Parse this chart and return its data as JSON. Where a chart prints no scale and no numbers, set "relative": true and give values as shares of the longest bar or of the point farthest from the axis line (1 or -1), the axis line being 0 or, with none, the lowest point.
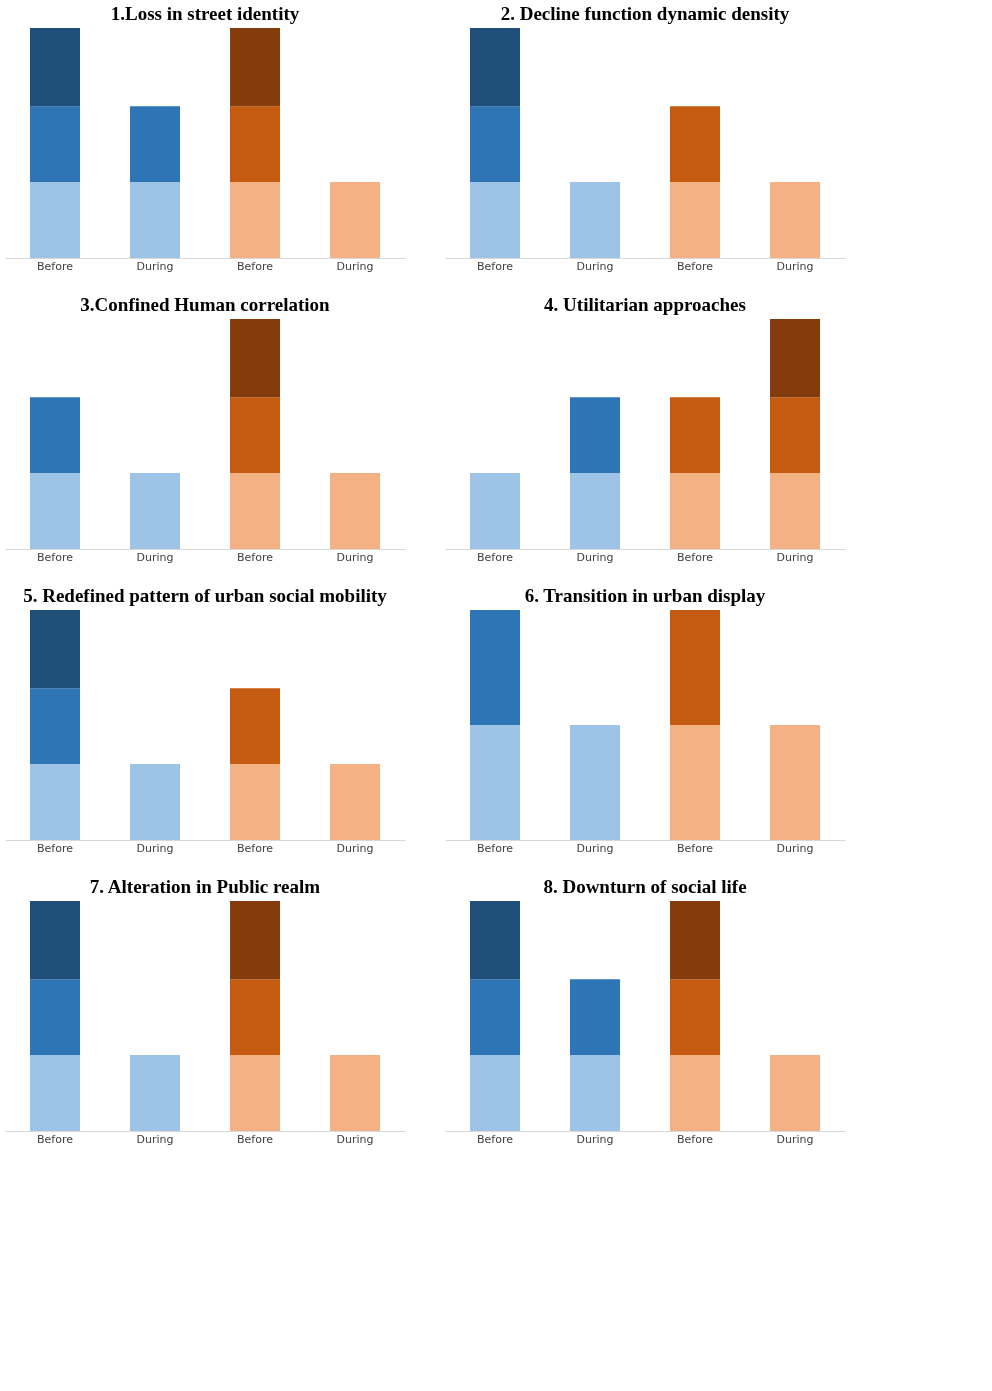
{
  "chart_data": [
    {
      "type": "bar",
      "title": "1.Loss in street identity",
      "categories": [
        "Before",
        "During",
        "Before",
        "During"
      ],
      "stacked": true,
      "relative": true,
      "series": [
        {
          "color": "#9dc3e6",
          "values": [
            0.33,
            0.33,
            null,
            null
          ]
        },
        {
          "color": "#2e75b6",
          "values": [
            0.33,
            0.33,
            null,
            null
          ]
        },
        {
          "color": "#1f4e79",
          "values": [
            0.34,
            null,
            null,
            null
          ]
        },
        {
          "color": "#f4b183",
          "values": [
            null,
            null,
            0.33,
            0.33
          ]
        },
        {
          "color": "#c55a11",
          "values": [
            null,
            null,
            0.33,
            null
          ]
        },
        {
          "color": "#843c0c",
          "values": [
            null,
            null,
            0.34,
            null
          ]
        }
      ]
    },
    {
      "type": "bar",
      "title": "2. Decline function dynamic density",
      "categories": [
        "Before",
        "During",
        "Before",
        "During"
      ],
      "stacked": true,
      "relative": true,
      "series": [
        {
          "color": "#9dc3e6",
          "values": [
            0.33,
            0.33,
            null,
            null
          ]
        },
        {
          "color": "#2e75b6",
          "values": [
            0.33,
            null,
            null,
            null
          ]
        },
        {
          "color": "#1f4e79",
          "values": [
            0.34,
            null,
            null,
            null
          ]
        },
        {
          "color": "#f4b183",
          "values": [
            null,
            null,
            0.33,
            0.33
          ]
        },
        {
          "color": "#c55a11",
          "values": [
            null,
            null,
            0.33,
            null
          ]
        }
      ]
    },
    {
      "type": "bar",
      "title": "3.Confined Human correlation",
      "categories": [
        "Before",
        "During",
        "Before",
        "During"
      ],
      "stacked": true,
      "relative": true,
      "series": [
        {
          "color": "#9dc3e6",
          "values": [
            0.33,
            0.33,
            null,
            null
          ]
        },
        {
          "color": "#2e75b6",
          "values": [
            0.33,
            null,
            null,
            null
          ]
        },
        {
          "color": "#f4b183",
          "values": [
            null,
            null,
            0.33,
            0.33
          ]
        },
        {
          "color": "#c55a11",
          "values": [
            null,
            null,
            0.33,
            null
          ]
        },
        {
          "color": "#843c0c",
          "values": [
            null,
            null,
            0.34,
            null
          ]
        }
      ]
    },
    {
      "type": "bar",
      "title": "4. Utilitarian approaches",
      "categories": [
        "Before",
        "During",
        "Before",
        "During"
      ],
      "stacked": true,
      "relative": true,
      "series": [
        {
          "color": "#9dc3e6",
          "values": [
            0.33,
            0.33,
            null,
            null
          ]
        },
        {
          "color": "#2e75b6",
          "values": [
            null,
            0.33,
            null,
            null
          ]
        },
        {
          "color": "#f4b183",
          "values": [
            null,
            null,
            0.33,
            0.33
          ]
        },
        {
          "color": "#c55a11",
          "values": [
            null,
            null,
            0.33,
            0.33
          ]
        },
        {
          "color": "#843c0c",
          "values": [
            null,
            null,
            null,
            0.34
          ]
        }
      ]
    },
    {
      "type": "bar",
      "title": "5. Redefined pattern of urban social mobility",
      "categories": [
        "Before",
        "During",
        "Before",
        "During"
      ],
      "stacked": true,
      "relative": true,
      "series": [
        {
          "color": "#9dc3e6",
          "values": [
            0.33,
            0.33,
            null,
            null
          ]
        },
        {
          "color": "#2e75b6",
          "values": [
            0.33,
            null,
            null,
            null
          ]
        },
        {
          "color": "#1f4e79",
          "values": [
            0.34,
            null,
            null,
            null
          ]
        },
        {
          "color": "#f4b183",
          "values": [
            null,
            null,
            0.33,
            0.33
          ]
        },
        {
          "color": "#c55a11",
          "values": [
            null,
            null,
            0.33,
            null
          ]
        }
      ]
    },
    {
      "type": "bar",
      "title": "6. Transition in urban display",
      "categories": [
        "Before",
        "During",
        "Before",
        "During"
      ],
      "stacked": true,
      "relative": true,
      "series": [
        {
          "color": "#9dc3e6",
          "values": [
            0.5,
            0.5,
            null,
            null
          ]
        },
        {
          "color": "#2e75b6",
          "values": [
            0.5,
            null,
            null,
            null
          ]
        },
        {
          "color": "#f4b183",
          "values": [
            null,
            null,
            0.5,
            0.5
          ]
        },
        {
          "color": "#c55a11",
          "values": [
            null,
            null,
            0.5,
            null
          ]
        }
      ]
    },
    {
      "type": "bar",
      "title": "7. Alteration in Public realm",
      "categories": [
        "Before",
        "During",
        "Before",
        "During"
      ],
      "stacked": true,
      "relative": true,
      "series": [
        {
          "color": "#9dc3e6",
          "values": [
            0.33,
            0.33,
            null,
            null
          ]
        },
        {
          "color": "#2e75b6",
          "values": [
            0.33,
            null,
            null,
            null
          ]
        },
        {
          "color": "#1f4e79",
          "values": [
            0.34,
            null,
            null,
            null
          ]
        },
        {
          "color": "#f4b183",
          "values": [
            null,
            null,
            0.33,
            0.33
          ]
        },
        {
          "color": "#c55a11",
          "values": [
            null,
            null,
            0.33,
            null
          ]
        },
        {
          "color": "#843c0c",
          "values": [
            null,
            null,
            0.34,
            null
          ]
        }
      ]
    },
    {
      "type": "bar",
      "title": "8. Downturn of social life",
      "categories": [
        "Before",
        "During",
        "Before",
        "During"
      ],
      "stacked": true,
      "relative": true,
      "series": [
        {
          "color": "#9dc3e6",
          "values": [
            0.33,
            0.33,
            null,
            null
          ]
        },
        {
          "color": "#2e75b6",
          "values": [
            0.33,
            0.33,
            null,
            null
          ]
        },
        {
          "color": "#1f4e79",
          "values": [
            0.34,
            null,
            null,
            null
          ]
        },
        {
          "color": "#f4b183",
          "values": [
            null,
            null,
            0.33,
            0.33
          ]
        },
        {
          "color": "#c55a11",
          "values": [
            null,
            null,
            0.33,
            null
          ]
        },
        {
          "color": "#843c0c",
          "values": [
            null,
            null,
            0.34,
            null
          ]
        }
      ]
    }
  ]
}
